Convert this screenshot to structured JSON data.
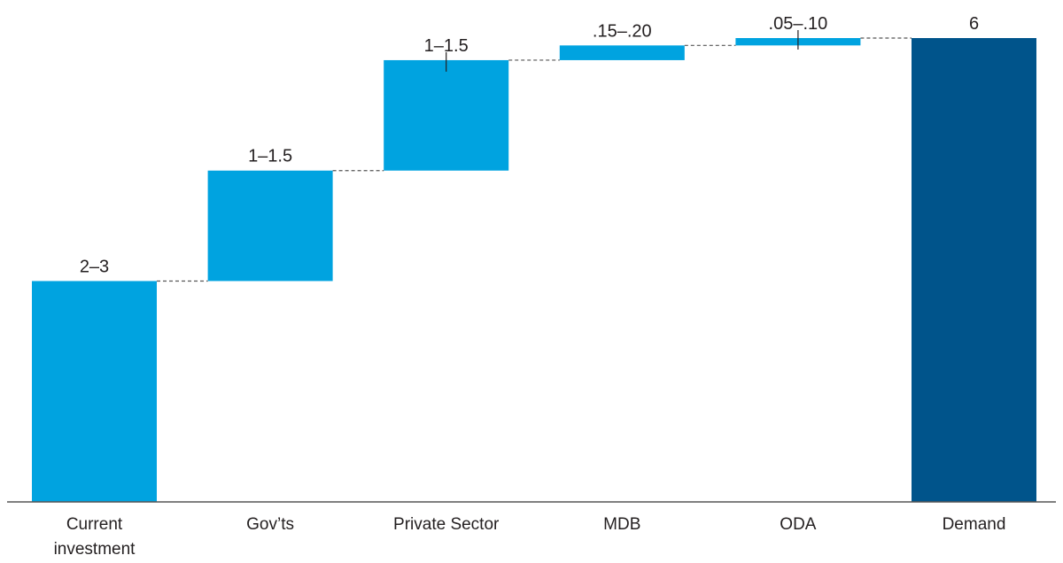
{
  "chart_data": {
    "type": "bar",
    "subtype": "waterfall",
    "title": "",
    "xlabel": "",
    "ylabel": "",
    "ylim": [
      0,
      6.5
    ],
    "grid": false,
    "legend": "none",
    "categories": [
      "Current investment",
      "Gov’ts",
      "Private Sector",
      "MDB",
      "ODA",
      "Demand"
    ],
    "value_labels": [
      "2–3",
      "1–1.5",
      "1–1.5",
      ".15–.20",
      ".05–.10",
      "6"
    ],
    "bars": [
      {
        "category": "Current investment",
        "base": 0,
        "value": 3.0,
        "kind": "start"
      },
      {
        "category": "Gov’ts",
        "base": 3.0,
        "value": 1.5,
        "kind": "increase"
      },
      {
        "category": "Private Sector",
        "base": 4.5,
        "value": 1.5,
        "kind": "increase",
        "range_tick": true
      },
      {
        "category": "MDB",
        "base": 6.0,
        "value": 0.2,
        "kind": "increase"
      },
      {
        "category": "ODA",
        "base": 6.2,
        "value": 0.1,
        "kind": "increase",
        "range_tick": true
      },
      {
        "category": "Demand",
        "base": 0,
        "value": 6.3,
        "kind": "total"
      }
    ],
    "colors": {
      "increase": "#00a3e0",
      "total": "#00548b",
      "connector": "#555555",
      "axis": "#555555",
      "text": "#231f20"
    }
  }
}
